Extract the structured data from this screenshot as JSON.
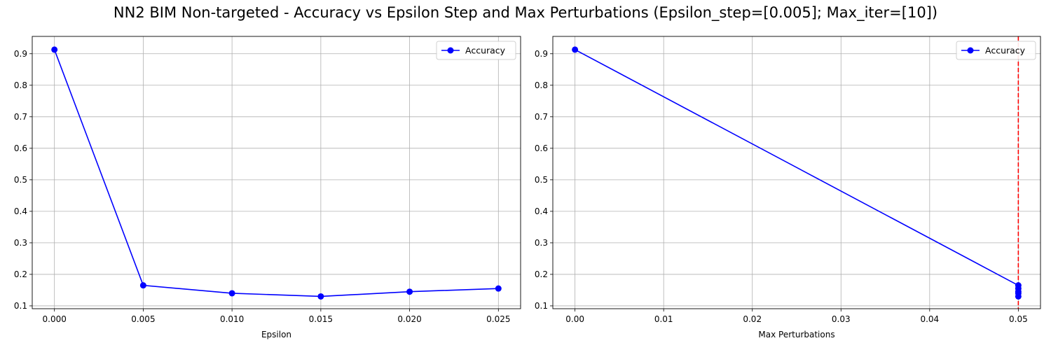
{
  "figure": {
    "title": "NN2 BIM Non-targeted - Accuracy vs Epsilon Step and Max Perturbations (Epsilon_step=[0.005]; Max_iter=[10])"
  },
  "chart_data": [
    {
      "type": "line",
      "title": "",
      "xlabel": "Epsilon",
      "ylabel": "",
      "xlim": [
        -0.00125,
        0.02625
      ],
      "ylim": [
        0.091,
        0.955
      ],
      "xticks": [
        0.0,
        0.005,
        0.01,
        0.015,
        0.02,
        0.025
      ],
      "xtick_labels": [
        "0.000",
        "0.005",
        "0.010",
        "0.015",
        "0.020",
        "0.025"
      ],
      "yticks": [
        0.1,
        0.2,
        0.3,
        0.4,
        0.5,
        0.6,
        0.7,
        0.8,
        0.9
      ],
      "ytick_labels": [
        "0.1",
        "0.2",
        "0.3",
        "0.4",
        "0.5",
        "0.6",
        "0.7",
        "0.8",
        "0.9"
      ],
      "grid": true,
      "legend": "top-right",
      "series": [
        {
          "name": "Accuracy",
          "color": "#0000ff",
          "marker": "circle",
          "x": [
            0.0,
            0.005,
            0.01,
            0.015,
            0.02,
            0.025
          ],
          "y": [
            0.913,
            0.165,
            0.14,
            0.13,
            0.145,
            0.155
          ]
        }
      ]
    },
    {
      "type": "line",
      "title": "",
      "xlabel": "Max Perturbations",
      "ylabel": "",
      "xlim": [
        -0.0025,
        0.0525
      ],
      "ylim": [
        0.091,
        0.955
      ],
      "xticks": [
        0.0,
        0.01,
        0.02,
        0.03,
        0.04,
        0.05
      ],
      "xtick_labels": [
        "0.00",
        "0.01",
        "0.02",
        "0.03",
        "0.04",
        "0.05"
      ],
      "yticks": [
        0.1,
        0.2,
        0.3,
        0.4,
        0.5,
        0.6,
        0.7,
        0.8,
        0.9
      ],
      "ytick_labels": [
        "0.1",
        "0.2",
        "0.3",
        "0.4",
        "0.5",
        "0.6",
        "0.7",
        "0.8",
        "0.9"
      ],
      "grid": true,
      "legend": "top-right",
      "vline": {
        "x": 0.05,
        "color": "#ff0000",
        "style": "dashed"
      },
      "series": [
        {
          "name": "Accuracy",
          "color": "#0000ff",
          "marker": "circle",
          "x": [
            0.0,
            0.05,
            0.05,
            0.05,
            0.05,
            0.05
          ],
          "y": [
            0.913,
            0.165,
            0.14,
            0.13,
            0.145,
            0.155
          ]
        }
      ]
    }
  ]
}
